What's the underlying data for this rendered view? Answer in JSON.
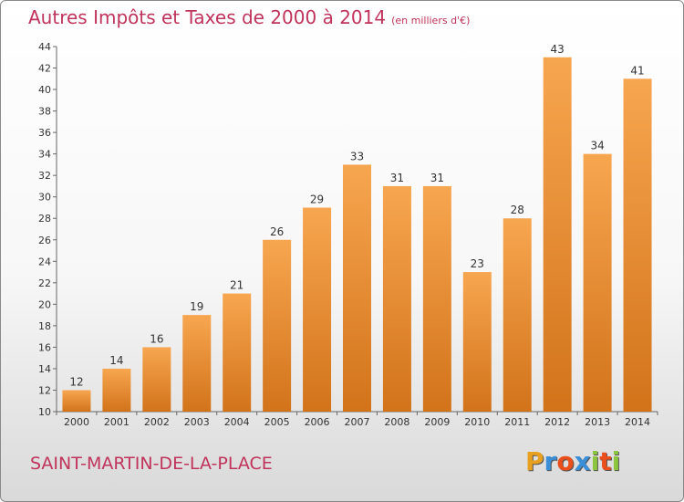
{
  "title": "Autres Impôts et Taxes de 2000 à 2014",
  "unit": "(en milliers d'€)",
  "city": "SAINT-MARTIN-DE-LA-PLACE",
  "logo": {
    "letters": [
      "P",
      "r",
      "o",
      "x",
      "i",
      "t",
      "i"
    ],
    "colors": [
      "#e8a020",
      "#3b8fd8",
      "#e94e1b",
      "#3b8fd8",
      "#8cc63f",
      "#e94e1b",
      "#8cc63f"
    ]
  },
  "colors": {
    "bar_light": "#f7a650",
    "bar_dark": "#d2731a",
    "text": "#c0335a"
  },
  "chart_data": {
    "type": "bar",
    "categories": [
      "2000",
      "2001",
      "2002",
      "2003",
      "2004",
      "2005",
      "2006",
      "2007",
      "2008",
      "2009",
      "2010",
      "2011",
      "2012",
      "2013",
      "2014"
    ],
    "values": [
      12,
      14,
      16,
      19,
      21,
      26,
      29,
      33,
      31,
      31,
      23,
      28,
      43,
      34,
      41
    ],
    "ylim": [
      10,
      44
    ],
    "yticks": [
      10,
      12,
      14,
      16,
      18,
      20,
      22,
      24,
      26,
      28,
      30,
      32,
      34,
      36,
      38,
      40,
      42,
      44
    ],
    "grid": false,
    "legend": "none"
  }
}
